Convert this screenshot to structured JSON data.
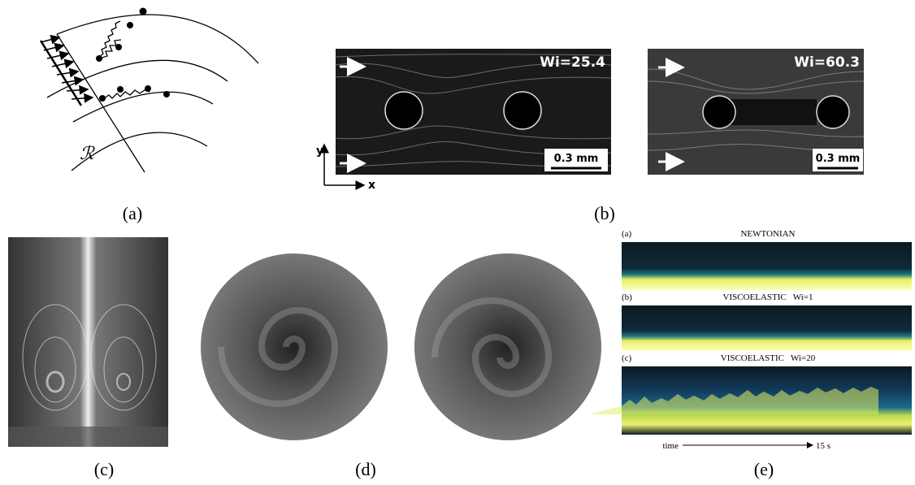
{
  "panels": [
    {
      "caption": "(a)",
      "symbol": "ℛ"
    },
    {
      "caption": "(b)",
      "images": [
        {
          "label": "Wi=25.4",
          "scale_bar": "0.3 mm"
        },
        {
          "label": "Wi=60.3",
          "scale_bar": "0.3 mm"
        }
      ],
      "axes": {
        "y": "y",
        "x": "x"
      }
    },
    {
      "caption": "(c)"
    },
    {
      "caption": "(d)"
    },
    {
      "caption": "(e)",
      "strips": [
        {
          "tag": "(a)",
          "title": "NEWTONIAN"
        },
        {
          "tag": "(b)",
          "title": "VISCOELASTIC   Wi=1"
        },
        {
          "tag": "(c)",
          "title": "VISCOELASTIC   Wi=20"
        }
      ],
      "time_label": "time",
      "time_end": "15 s"
    }
  ]
}
